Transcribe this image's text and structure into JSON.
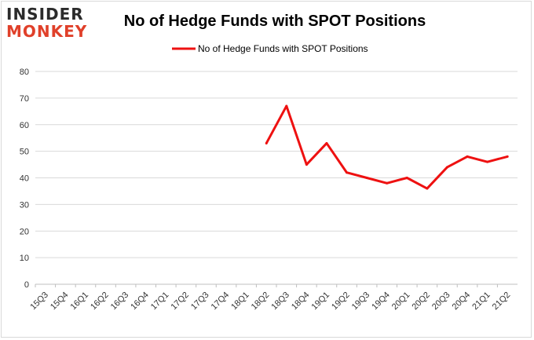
{
  "logo": {
    "line1": "INSIDER",
    "line2": "MONKEY"
  },
  "chart_data": {
    "type": "line",
    "title": "No of Hedge Funds with SPOT Positions",
    "xlabel": "",
    "ylabel": "",
    "categories": [
      "15Q3",
      "15Q4",
      "16Q1",
      "16Q2",
      "16Q3",
      "16Q4",
      "17Q1",
      "17Q2",
      "17Q3",
      "17Q4",
      "18Q1",
      "18Q2",
      "18Q3",
      "18Q4",
      "19Q1",
      "19Q2",
      "19Q3",
      "19Q4",
      "20Q1",
      "20Q2",
      "20Q3",
      "20Q4",
      "21Q1",
      "21Q2"
    ],
    "series": [
      {
        "name": "No of Hedge Funds with SPOT Positions",
        "color": "#ee1111",
        "values": [
          null,
          null,
          null,
          null,
          null,
          null,
          null,
          null,
          null,
          null,
          null,
          53,
          67,
          45,
          53,
          42,
          40,
          38,
          40,
          36,
          44,
          48,
          46,
          48
        ]
      }
    ],
    "ylim": [
      0,
      80
    ],
    "yticks": [
      0,
      10,
      20,
      30,
      40,
      50,
      60,
      70,
      80
    ],
    "grid": true,
    "legend": "top-center"
  }
}
